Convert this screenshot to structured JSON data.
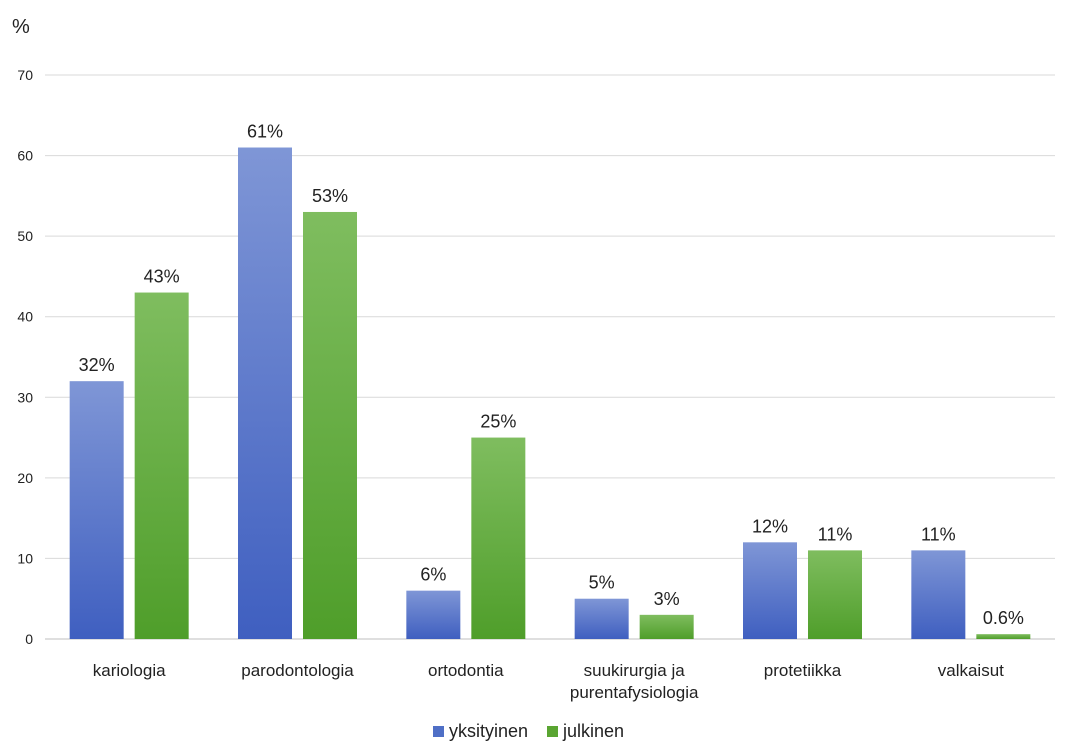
{
  "chart_data": {
    "type": "bar",
    "ylabel": "%",
    "ylim": [
      0,
      70
    ],
    "yticks": [
      0,
      10,
      20,
      30,
      40,
      50,
      60,
      70
    ],
    "grid": true,
    "legend_position": "bottom",
    "categories": [
      [
        "kariologia"
      ],
      [
        "parodontologia"
      ],
      [
        "ortodontia"
      ],
      [
        "suukirurgia ja",
        "purentafysiologia"
      ],
      [
        "protetiikka"
      ],
      [
        "valkaisut"
      ]
    ],
    "series": [
      {
        "name": "yksityinen",
        "color": "#4f6fc6",
        "values": [
          32,
          61,
          6,
          5,
          12,
          11
        ],
        "labels": [
          "32%",
          "61%",
          "6%",
          "5%",
          "12%",
          "11%"
        ]
      },
      {
        "name": "julkinen",
        "color": "#5aa532",
        "values": [
          43,
          53,
          25,
          3,
          11,
          0.6
        ],
        "labels": [
          "43%",
          "53%",
          "25%",
          "3%",
          "11%",
          "0.6%"
        ]
      }
    ]
  }
}
